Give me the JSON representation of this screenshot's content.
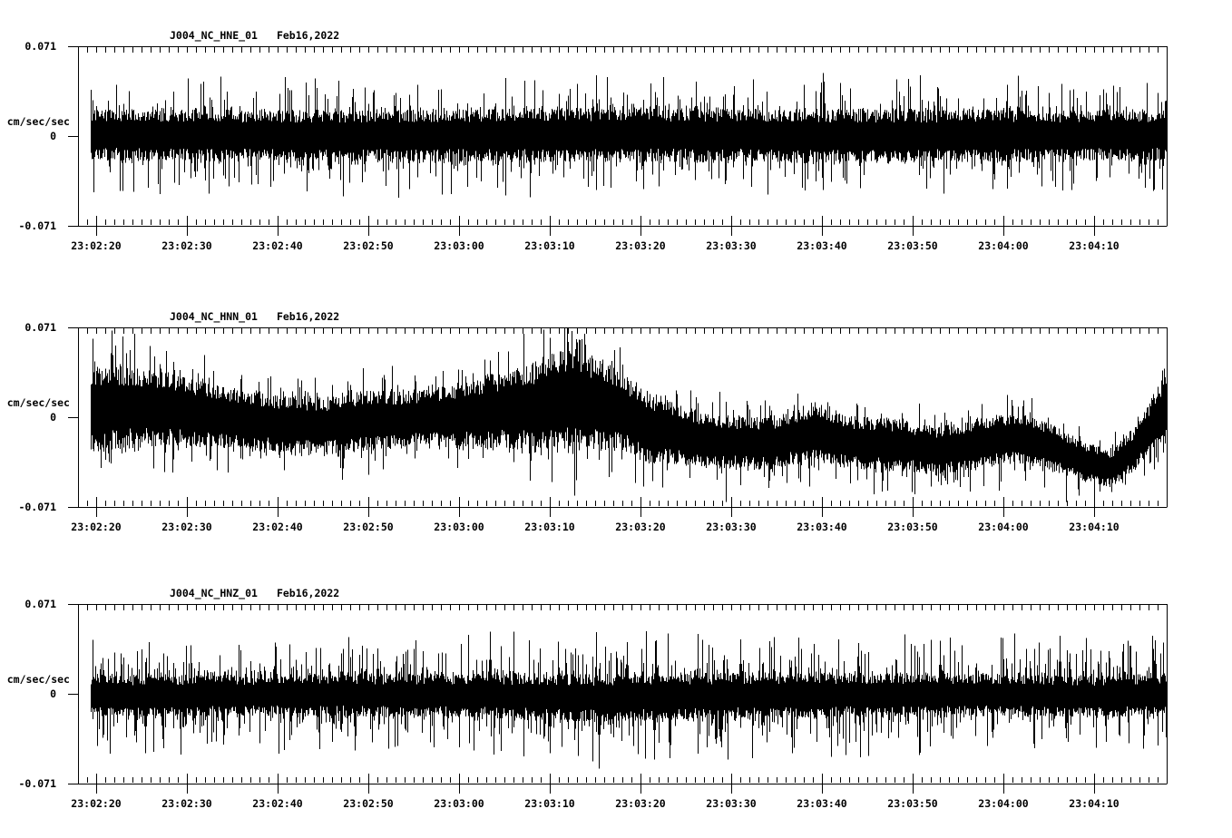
{
  "figure": {
    "background": "#ffffff",
    "trace_color": "#000000",
    "axis_color": "#000000"
  },
  "chart_data": [
    {
      "type": "line",
      "subtype": "seismogram",
      "title": "J004_NC_HNE_01",
      "date": "Feb16,2022",
      "ylabel": "cm/sec/sec",
      "yticks": [
        "0.071",
        "0",
        "-0.071"
      ],
      "ylim": [
        -0.071,
        0.071
      ],
      "x_start": "23:02:18",
      "x_end": "23:04:18",
      "x_major_tick_s": 10,
      "x_minor_tick_s": 1,
      "xlabels": [
        "23:02:20",
        "23:02:30",
        "23:02:40",
        "23:02:50",
        "23:03:00",
        "23:03:10",
        "23:03:20",
        "23:03:30",
        "23:03:40",
        "23:03:50",
        "23:04:00",
        "23:04:10"
      ],
      "envelope": {
        "t": [
          1.4,
          30,
          60,
          90,
          120
        ],
        "mean": [
          0.001,
          0.0,
          0.001,
          0.0,
          0.001
        ],
        "amp": [
          0.0155,
          0.016,
          0.0165,
          0.016,
          0.0155
        ]
      },
      "noise": {
        "tail_weight": 1.9,
        "tail_power": 9,
        "seed": 20220216
      },
      "spikes": [
        {
          "t": 14.0,
          "v": -0.035
        },
        {
          "t": 26.3,
          "v": 0.038
        },
        {
          "t": 35.0,
          "v": 0.034
        },
        {
          "t": 44.4,
          "v": -0.036
        },
        {
          "t": 55.0,
          "v": 0.036
        },
        {
          "t": 68.1,
          "v": 0.043
        },
        {
          "t": 80.1,
          "v": -0.039
        },
        {
          "t": 91.7,
          "v": 0.039
        },
        {
          "t": 104.0,
          "v": 0.036
        },
        {
          "t": 113.0,
          "v": 0.037
        },
        {
          "t": 117.6,
          "v": -0.041
        }
      ]
    },
    {
      "type": "line",
      "subtype": "seismogram",
      "title": "J004_NC_HNN_01",
      "date": "Feb16,2022",
      "ylabel": "cm/sec/sec",
      "yticks": [
        "0.071",
        "0",
        "-0.071"
      ],
      "ylim": [
        -0.071,
        0.071
      ],
      "x_start": "23:02:18",
      "x_end": "23:04:18",
      "x_major_tick_s": 10,
      "x_minor_tick_s": 1,
      "xlabels": [
        "23:02:20",
        "23:02:30",
        "23:02:40",
        "23:02:50",
        "23:03:00",
        "23:03:10",
        "23:03:20",
        "23:03:30",
        "23:03:40",
        "23:03:50",
        "23:04:00",
        "23:04:10"
      ],
      "envelope": {
        "t": [
          1.4,
          6,
          10,
          16,
          22,
          27,
          32,
          37,
          42,
          46,
          50,
          54,
          55.5,
          58,
          60,
          62,
          66,
          70,
          76,
          81,
          85,
          90,
          95,
          101,
          104,
          108,
          111,
          114,
          116.5,
          118.5,
          120
        ],
        "mean": [
          0.006,
          0.008,
          0.006,
          0.0,
          -0.005,
          -0.007,
          -0.003,
          -0.001,
          0.002,
          0.005,
          0.008,
          0.014,
          0.012,
          0.008,
          0.005,
          -0.006,
          -0.013,
          -0.019,
          -0.021,
          -0.013,
          -0.02,
          -0.022,
          -0.027,
          -0.018,
          -0.016,
          -0.026,
          -0.036,
          -0.04,
          -0.025,
          -0.005,
          0.01
        ],
        "amp": [
          0.027,
          0.025,
          0.022,
          0.019,
          0.018,
          0.018,
          0.019,
          0.017,
          0.02,
          0.023,
          0.027,
          0.034,
          0.03,
          0.028,
          0.024,
          0.022,
          0.019,
          0.016,
          0.016,
          0.017,
          0.016,
          0.016,
          0.015,
          0.016,
          0.016,
          0.014,
          0.012,
          0.012,
          0.013,
          0.018,
          0.02
        ]
      },
      "noise": {
        "tail_weight": 1.3,
        "tail_power": 10,
        "seed": 777001
      },
      "spikes": [
        {
          "t": 2.5,
          "v": -0.04
        },
        {
          "t": 13.9,
          "v": 0.049
        },
        {
          "t": 47.4,
          "v": 0.052
        },
        {
          "t": 50.4,
          "v": 0.044
        },
        {
          "t": 54.4,
          "v": 0.068
        },
        {
          "t": 57.0,
          "v": 0.045
        },
        {
          "t": 61.4,
          "v": -0.052
        },
        {
          "t": 71.4,
          "v": -0.067
        },
        {
          "t": 87.7,
          "v": -0.061
        },
        {
          "t": 94.0,
          "v": -0.055
        },
        {
          "t": 101.5,
          "v": -0.058
        },
        {
          "t": 108.9,
          "v": -0.067
        },
        {
          "t": 110.3,
          "v": -0.062
        },
        {
          "t": 112.0,
          "v": -0.068
        },
        {
          "t": 119.5,
          "v": 0.037
        }
      ]
    },
    {
      "type": "line",
      "subtype": "seismogram",
      "title": "J004_NC_HNZ_01",
      "date": "Feb16,2022",
      "ylabel": "cm/sec/sec",
      "yticks": [
        "0.071",
        "0",
        "-0.071"
      ],
      "ylim": [
        -0.071,
        0.071
      ],
      "x_start": "23:02:18",
      "x_end": "23:04:18",
      "x_major_tick_s": 10,
      "x_minor_tick_s": 1,
      "xlabels": [
        "23:02:20",
        "23:02:30",
        "23:02:40",
        "23:02:50",
        "23:03:00",
        "23:03:10",
        "23:03:20",
        "23:03:30",
        "23:03:40",
        "23:03:50",
        "23:04:00",
        "23:04:10"
      ],
      "envelope": {
        "t": [
          1.4,
          20,
          40,
          50,
          58,
          70,
          85,
          100,
          110,
          120
        ],
        "mean": [
          -0.002,
          -0.001,
          -0.001,
          -0.002,
          -0.003,
          -0.002,
          -0.001,
          -0.001,
          -0.002,
          -0.001
        ],
        "amp": [
          0.013,
          0.0125,
          0.013,
          0.014,
          0.0145,
          0.014,
          0.0135,
          0.013,
          0.0125,
          0.013
        ]
      },
      "noise": {
        "tail_weight": 2.6,
        "tail_power": 6,
        "seed": 424242
      },
      "spikes": [
        {
          "t": 7.4,
          "v": -0.047
        },
        {
          "t": 16.0,
          "v": -0.04
        },
        {
          "t": 29.0,
          "v": 0.032
        },
        {
          "t": 33.0,
          "v": 0.036
        },
        {
          "t": 45.4,
          "v": 0.049
        },
        {
          "t": 52.0,
          "v": -0.047
        },
        {
          "t": 57.4,
          "v": -0.059
        },
        {
          "t": 60.5,
          "v": 0.041
        },
        {
          "t": 63.5,
          "v": -0.052
        },
        {
          "t": 73.0,
          "v": 0.043
        },
        {
          "t": 86.0,
          "v": 0.04
        },
        {
          "t": 95.0,
          "v": 0.042
        },
        {
          "t": 108.2,
          "v": 0.046
        },
        {
          "t": 116.0,
          "v": 0.038
        }
      ]
    }
  ]
}
